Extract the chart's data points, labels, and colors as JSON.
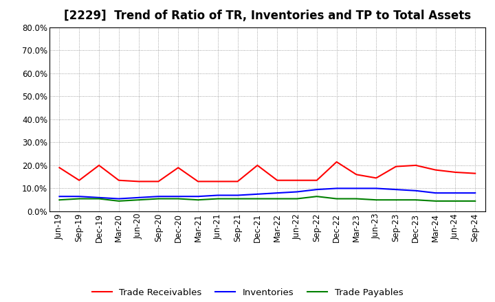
{
  "title": "[2229]  Trend of Ratio of TR, Inventories and TP to Total Assets",
  "x_labels": [
    "Jun-19",
    "Sep-19",
    "Dec-19",
    "Mar-20",
    "Jun-20",
    "Sep-20",
    "Dec-20",
    "Mar-21",
    "Jun-21",
    "Sep-21",
    "Dec-21",
    "Mar-22",
    "Jun-22",
    "Sep-22",
    "Dec-22",
    "Mar-23",
    "Jun-23",
    "Sep-23",
    "Dec-23",
    "Mar-24",
    "Jun-24",
    "Sep-24"
  ],
  "trade_receivables": [
    19.0,
    13.5,
    20.0,
    13.5,
    13.0,
    13.0,
    19.0,
    13.0,
    13.0,
    13.0,
    20.0,
    13.5,
    13.5,
    13.5,
    21.5,
    16.0,
    14.5,
    19.5,
    20.0,
    18.0,
    17.0,
    16.5
  ],
  "inventories": [
    6.5,
    6.5,
    6.0,
    5.5,
    6.0,
    6.5,
    6.5,
    6.5,
    7.0,
    7.0,
    7.5,
    8.0,
    8.5,
    9.5,
    10.0,
    10.0,
    10.0,
    9.5,
    9.0,
    8.0,
    8.0,
    8.0
  ],
  "trade_payables": [
    5.0,
    5.5,
    5.5,
    4.5,
    5.0,
    5.5,
    5.5,
    5.0,
    5.5,
    5.5,
    5.5,
    5.5,
    5.5,
    6.5,
    5.5,
    5.5,
    5.0,
    5.0,
    5.0,
    4.5,
    4.5,
    4.5
  ],
  "tr_color": "#ff0000",
  "inv_color": "#0000ff",
  "tp_color": "#008000",
  "ylim": [
    0.0,
    80.0
  ],
  "yticks": [
    0.0,
    10.0,
    20.0,
    30.0,
    40.0,
    50.0,
    60.0,
    70.0,
    80.0
  ],
  "legend_labels": [
    "Trade Receivables",
    "Inventories",
    "Trade Payables"
  ],
  "background_color": "#ffffff",
  "grid_color": "#888888",
  "title_fontsize": 12,
  "axis_fontsize": 8.5,
  "legend_fontsize": 9.5
}
